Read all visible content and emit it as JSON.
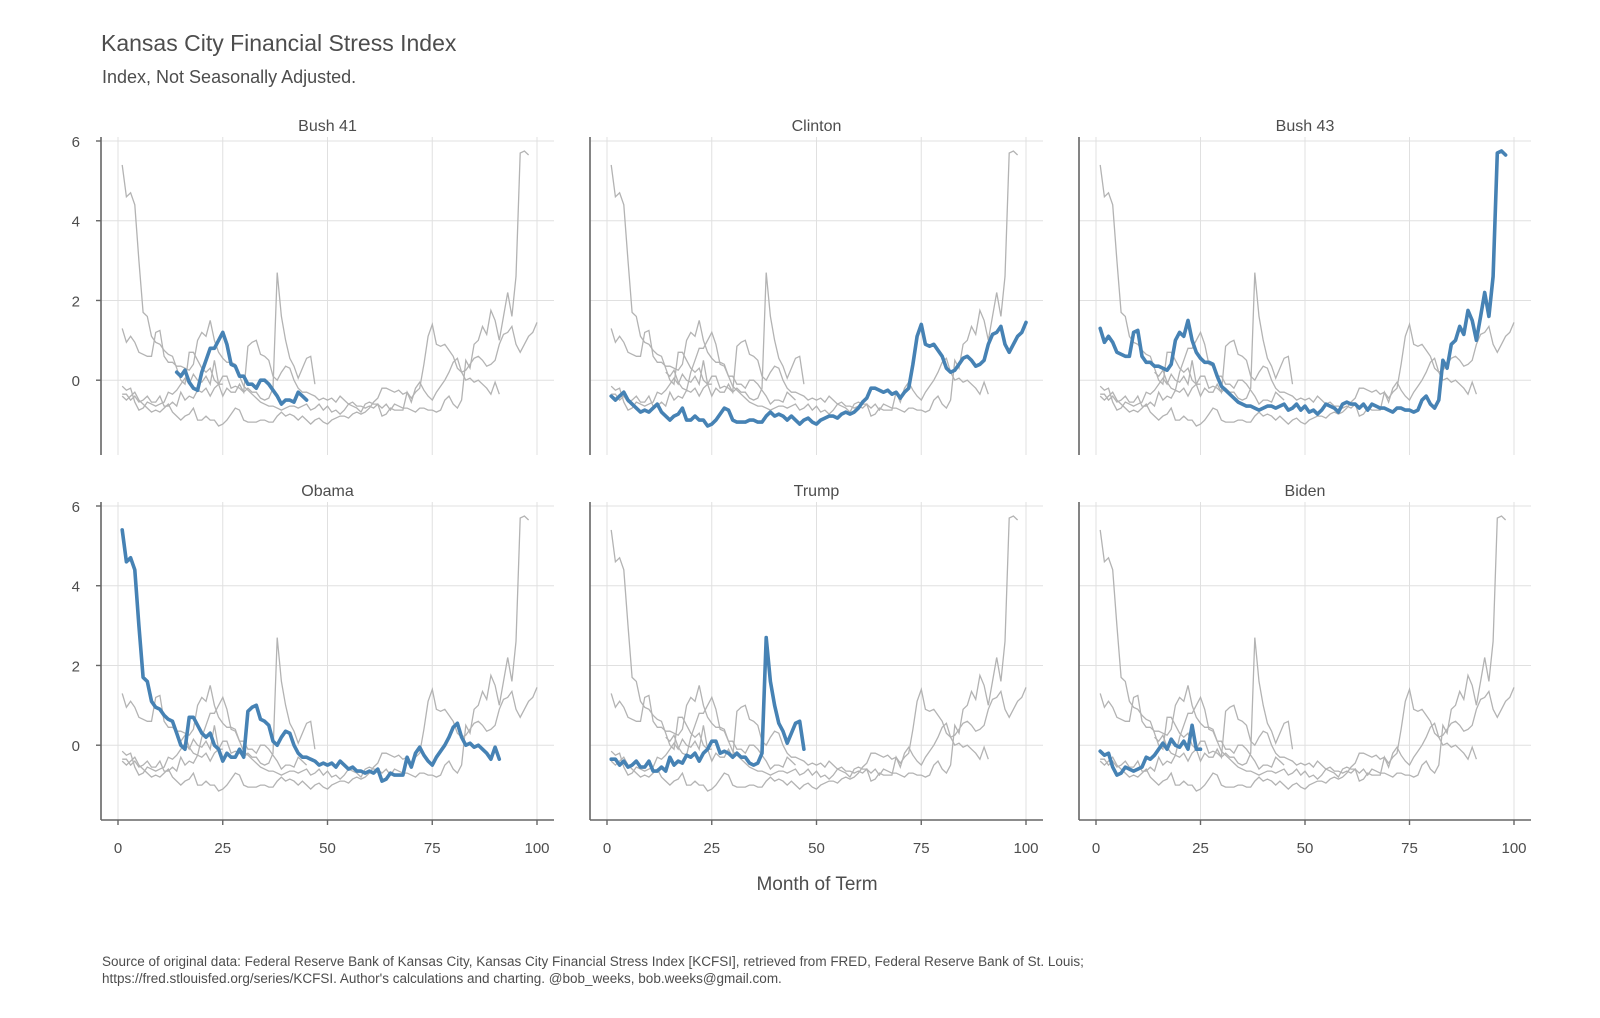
{
  "chart": {
    "title": "Kansas City Financial Stress Index",
    "subtitle": "Index, Not Seasonally Adjusted.",
    "caption_line1": "Source of original data: Federal Reserve Bank of Kansas City, Kansas City Financial Stress Index [KCFSI], retrieved from FRED, Federal Reserve Bank of St. Louis;",
    "caption_line2": "https://fred.stlouisfed.org/series/KCFSI. Author's calculations and charting. @bob_weeks, bob.weeks@gmail.com.",
    "colors": {
      "highlight": "#4682b4",
      "background": "#b3b3b3",
      "grid": "#e0e0e0",
      "axis": "#666666"
    }
  },
  "chart_data": {
    "type": "line",
    "title": "Kansas City Financial Stress Index",
    "subtitle": "Index, Not Seasonally Adjusted.",
    "xlabel": "Month of Term",
    "ylabel": "",
    "xlim": [
      0,
      100
    ],
    "ylim": [
      -1.5,
      6
    ],
    "x_ticks": [
      0,
      25,
      50,
      75,
      100
    ],
    "y_ticks": [
      0,
      2,
      4,
      6
    ],
    "grid": true,
    "facet_layout": "2 rows x 3 columns",
    "facets": [
      "Bush 41",
      "Clinton",
      "Bush 43",
      "Obama",
      "Trump",
      "Biden"
    ],
    "series": [
      {
        "name": "Bush 41",
        "start_month": 14,
        "values": [
          0.2,
          0.1,
          0.25,
          -0.05,
          -0.2,
          -0.25,
          0.2,
          0.5,
          0.8,
          0.8,
          1.0,
          1.2,
          0.9,
          0.4,
          0.35,
          0.1,
          0.1,
          -0.1,
          -0.1,
          -0.2,
          0.0,
          0.0,
          -0.1,
          -0.25,
          -0.4,
          -0.6,
          -0.5,
          -0.5,
          -0.55,
          -0.3,
          -0.4,
          -0.5
        ]
      },
      {
        "name": "Clinton",
        "start_month": 1,
        "values": [
          -0.4,
          -0.5,
          -0.4,
          -0.3,
          -0.5,
          -0.6,
          -0.7,
          -0.8,
          -0.75,
          -0.8,
          -0.7,
          -0.6,
          -0.8,
          -0.9,
          -1.0,
          -0.9,
          -0.85,
          -0.7,
          -1.0,
          -1.0,
          -0.9,
          -1.0,
          -1.0,
          -1.15,
          -1.1,
          -1.0,
          -0.85,
          -0.7,
          -0.75,
          -1.0,
          -1.05,
          -1.05,
          -1.05,
          -1.0,
          -1.0,
          -1.05,
          -1.05,
          -0.9,
          -0.8,
          -0.9,
          -0.85,
          -0.9,
          -1.0,
          -0.9,
          -1.0,
          -1.1,
          -1.0,
          -0.95,
          -1.05,
          -1.1,
          -1.0,
          -0.95,
          -0.9,
          -0.9,
          -0.95,
          -0.85,
          -0.8,
          -0.85,
          -0.8,
          -0.7,
          -0.55,
          -0.45,
          -0.2,
          -0.2,
          -0.25,
          -0.3,
          -0.25,
          -0.35,
          -0.3,
          -0.45,
          -0.3,
          -0.2,
          0.4,
          1.1,
          1.4,
          0.9,
          0.85,
          0.9,
          0.75,
          0.6,
          0.3,
          0.2,
          0.25,
          0.4,
          0.55,
          0.6,
          0.5,
          0.35,
          0.4,
          0.5,
          0.9,
          1.15,
          1.2,
          1.35,
          0.9,
          0.7,
          0.9,
          1.1,
          1.2,
          1.45
        ]
      },
      {
        "name": "Bush 43",
        "start_month": 1,
        "values": [
          1.3,
          0.95,
          1.1,
          0.95,
          0.7,
          0.65,
          0.6,
          0.6,
          1.2,
          1.25,
          0.6,
          0.45,
          0.45,
          0.35,
          0.35,
          0.3,
          0.25,
          0.4,
          1.0,
          1.2,
          1.1,
          1.5,
          1.0,
          0.7,
          0.55,
          0.45,
          0.45,
          0.4,
          0.1,
          -0.15,
          -0.25,
          -0.35,
          -0.45,
          -0.55,
          -0.6,
          -0.65,
          -0.65,
          -0.7,
          -0.75,
          -0.7,
          -0.65,
          -0.65,
          -0.7,
          -0.65,
          -0.6,
          -0.75,
          -0.7,
          -0.6,
          -0.75,
          -0.65,
          -0.8,
          -0.75,
          -0.85,
          -0.75,
          -0.6,
          -0.65,
          -0.7,
          -0.8,
          -0.6,
          -0.55,
          -0.6,
          -0.6,
          -0.7,
          -0.6,
          -0.75,
          -0.6,
          -0.65,
          -0.7,
          -0.7,
          -0.75,
          -0.8,
          -0.7,
          -0.7,
          -0.75,
          -0.75,
          -0.8,
          -0.75,
          -0.5,
          -0.4,
          -0.6,
          -0.7,
          -0.5,
          0.5,
          0.3,
          0.9,
          1.0,
          1.35,
          1.15,
          1.75,
          1.5,
          1.0,
          1.6,
          2.2,
          1.6,
          2.6,
          5.7,
          5.75,
          5.65
        ]
      },
      {
        "name": "Obama",
        "start_month": 1,
        "values": [
          5.4,
          4.6,
          4.7,
          4.4,
          3.0,
          1.7,
          1.6,
          1.1,
          0.95,
          0.9,
          0.75,
          0.65,
          0.6,
          0.3,
          0.0,
          -0.1,
          0.7,
          0.7,
          0.5,
          0.3,
          0.2,
          0.3,
          0.0,
          -0.1,
          -0.4,
          -0.2,
          -0.3,
          -0.3,
          -0.1,
          -0.3,
          0.85,
          0.95,
          1.0,
          0.65,
          0.6,
          0.5,
          0.1,
          0.0,
          0.2,
          0.35,
          0.3,
          0.0,
          -0.2,
          -0.3,
          -0.3,
          -0.35,
          -0.4,
          -0.5,
          -0.45,
          -0.5,
          -0.45,
          -0.55,
          -0.4,
          -0.5,
          -0.6,
          -0.55,
          -0.65,
          -0.65,
          -0.7,
          -0.65,
          -0.7,
          -0.6,
          -0.9,
          -0.85,
          -0.7,
          -0.75,
          -0.75,
          -0.75,
          -0.3,
          -0.55,
          -0.2,
          -0.05,
          -0.25,
          -0.4,
          -0.5,
          -0.3,
          -0.15,
          0.0,
          0.2,
          0.45,
          0.55,
          0.2,
          0.0,
          0.05,
          -0.05,
          0.0,
          -0.1,
          -0.2,
          -0.35,
          -0.05,
          -0.35
        ]
      },
      {
        "name": "Trump",
        "start_month": 1,
        "values": [
          -0.35,
          -0.35,
          -0.5,
          -0.4,
          -0.55,
          -0.5,
          -0.4,
          -0.55,
          -0.55,
          -0.4,
          -0.65,
          -0.65,
          -0.55,
          -0.65,
          -0.3,
          -0.5,
          -0.4,
          -0.45,
          -0.25,
          -0.3,
          -0.2,
          -0.4,
          -0.2,
          -0.1,
          0.1,
          0.1,
          -0.2,
          -0.15,
          -0.2,
          -0.3,
          -0.2,
          -0.3,
          -0.3,
          -0.45,
          -0.5,
          -0.45,
          -0.2,
          2.7,
          1.6,
          1.0,
          0.55,
          0.35,
          0.05,
          0.3,
          0.55,
          0.6,
          -0.1
        ]
      },
      {
        "name": "Biden",
        "start_month": 1,
        "values": [
          -0.15,
          -0.25,
          -0.2,
          -0.55,
          -0.75,
          -0.7,
          -0.55,
          -0.6,
          -0.65,
          -0.6,
          -0.55,
          -0.3,
          -0.35,
          -0.25,
          -0.1,
          0.05,
          -0.1,
          0.15,
          0.0,
          -0.05,
          0.1,
          -0.1,
          0.5,
          -0.1,
          -0.1
        ]
      }
    ]
  }
}
